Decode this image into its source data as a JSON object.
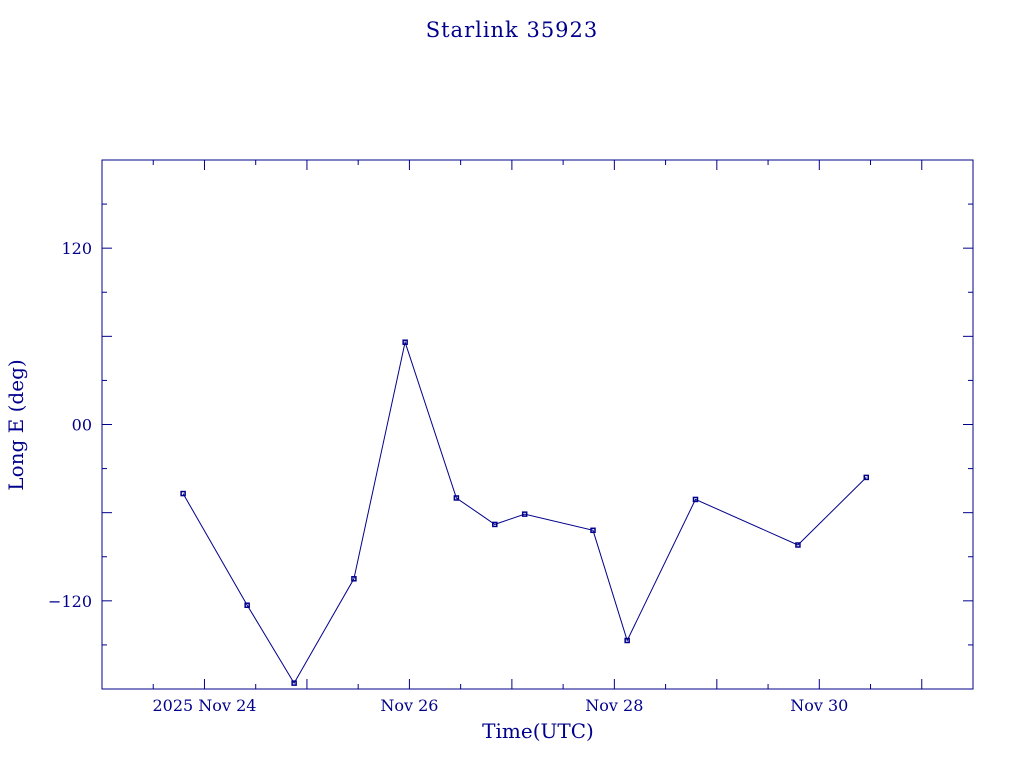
{
  "chart_data": {
    "type": "line",
    "title": "Starlink 35923",
    "xlabel": "Time(UTC)",
    "ylabel": "Long E (deg)",
    "x_ticks": [
      {
        "date": "2025-11-24T00:00:00Z",
        "label": "2025 Nov 24"
      },
      {
        "date": "2025-11-26T00:00:00Z",
        "label": "Nov 26"
      },
      {
        "date": "2025-11-28T00:00:00Z",
        "label": "Nov 28"
      },
      {
        "date": "2025-11-30T00:00:00Z",
        "label": "Nov 30"
      }
    ],
    "y_ticks": [
      {
        "value": 120,
        "label": "120"
      },
      {
        "value": 0,
        "label": "00"
      },
      {
        "value": -120,
        "label": "−120"
      }
    ],
    "xlim": [
      "2025-11-23T00:00:00Z",
      "2025-12-01T12:00:00Z"
    ],
    "ylim": [
      -180,
      180
    ],
    "grid": false,
    "color": "#00008b",
    "series": [
      {
        "x": [
          "2025-11-23T19:00:00Z",
          "2025-11-24T10:00:00Z",
          "2025-11-24T21:00:00Z",
          "2025-11-25T11:00:00Z",
          "2025-11-25T23:00:00Z",
          "2025-11-26T11:00:00Z",
          "2025-11-26T20:00:00Z",
          "2025-11-27T03:00:00Z",
          "2025-11-27T19:00:00Z",
          "2025-11-28T03:00:00Z",
          "2025-11-28T19:00:00Z",
          "2025-11-29T19:00:00Z",
          "2025-11-30T11:00:00Z"
        ],
        "y": [
          -47,
          -123,
          -176,
          -105,
          56,
          -50,
          -68,
          -61,
          -72,
          -147,
          -51,
          -82,
          -36
        ]
      }
    ]
  }
}
